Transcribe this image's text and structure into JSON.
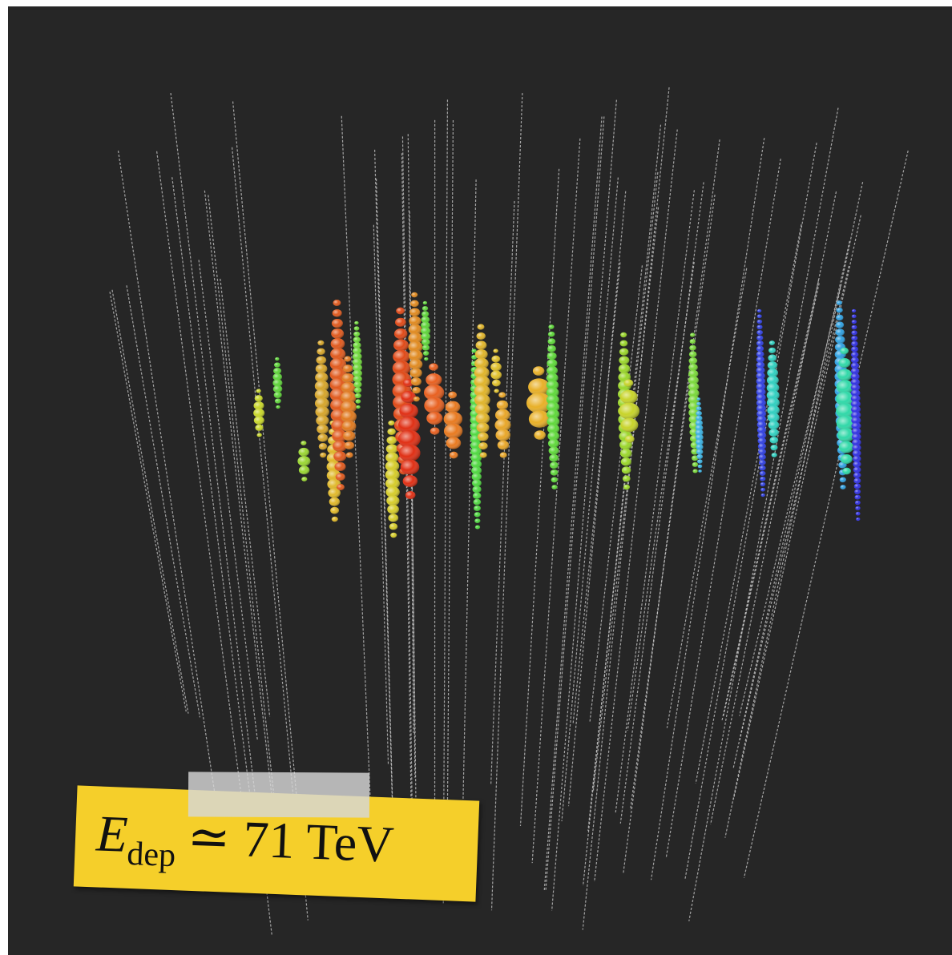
{
  "label": {
    "symbol": "E",
    "subscript": "dep",
    "relation": "≃ 71 TeV"
  }
}
